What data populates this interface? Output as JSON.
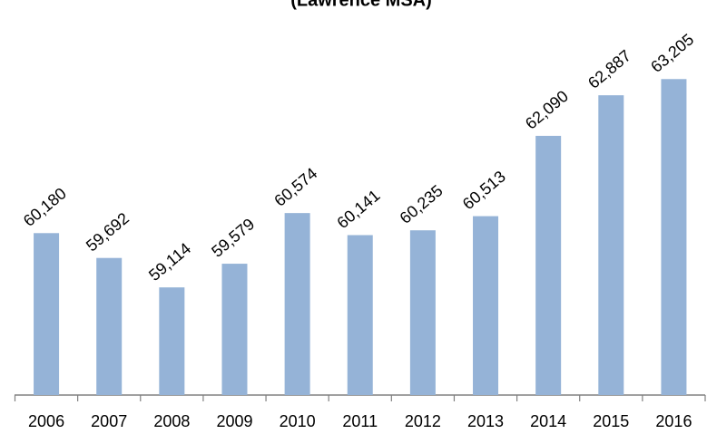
{
  "chart_data": {
    "type": "bar",
    "title": "(Lawrence MSA)",
    "categories": [
      "2006",
      "2007",
      "2008",
      "2009",
      "2010",
      "2011",
      "2012",
      "2013",
      "2014",
      "2015",
      "2016"
    ],
    "values": [
      60180,
      59692,
      59114,
      59579,
      60574,
      60141,
      60235,
      60513,
      62090,
      62887,
      63205
    ],
    "value_labels": [
      "60,180",
      "59,692",
      "59,114",
      "59,579",
      "60,574",
      "60,141",
      "60,235",
      "60,513",
      "62,090",
      "62,887",
      "63,205"
    ],
    "color": "#95b3d7",
    "ylim": [
      57000,
      64500
    ]
  }
}
